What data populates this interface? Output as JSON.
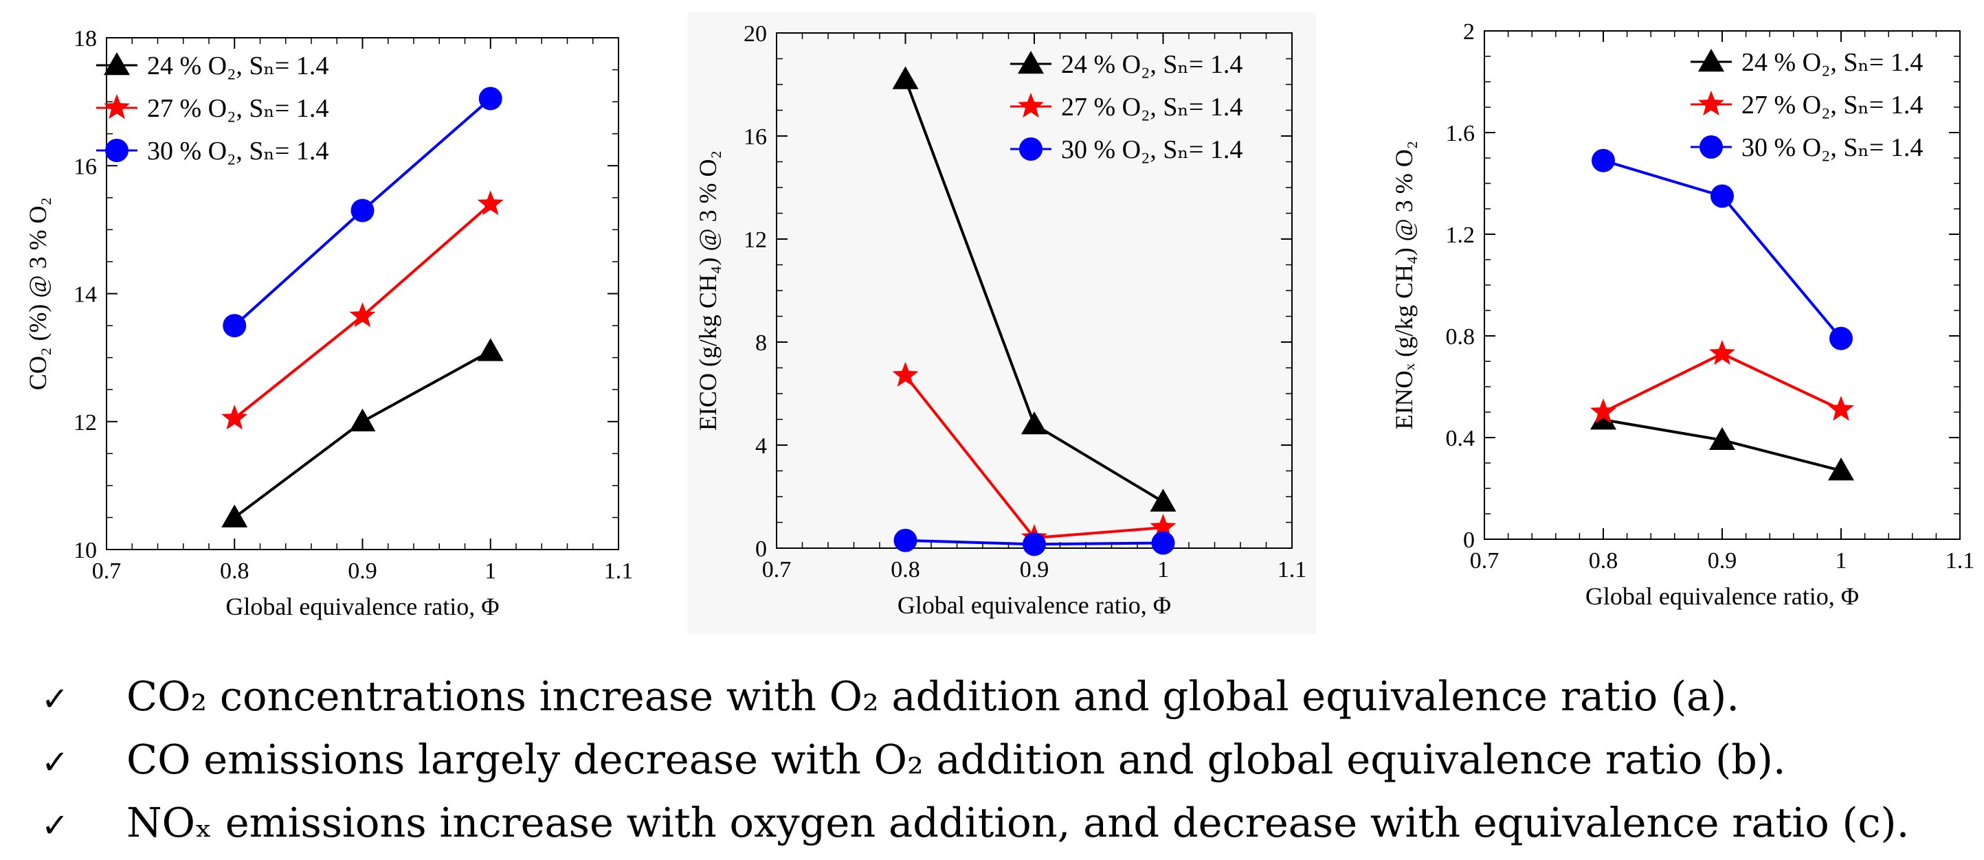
{
  "chart_data": [
    {
      "type": "line",
      "panel": "a",
      "xlabel": "Global equivalence ratio, Φ",
      "ylabel": "CO₂ (%) @ 3 % O₂",
      "xlim": [
        0.7,
        1.1
      ],
      "ylim": [
        10,
        18
      ],
      "xticks": [
        0.7,
        0.8,
        0.9,
        1.0,
        1.1
      ],
      "xtick_labels": [
        "0.7",
        "0.8",
        "0.9",
        "1",
        "1.1"
      ],
      "yticks": [
        10,
        12,
        14,
        16,
        18
      ],
      "ytick_labels": [
        "10",
        "12",
        "14",
        "16",
        "18"
      ],
      "x": [
        0.8,
        0.9,
        1.0
      ],
      "legend_position": "top-left",
      "grid": false,
      "background": "#ffffff",
      "series": [
        {
          "name": "24 % O₂, Sₙ= 1.4",
          "marker": "triangle",
          "color": "#000000",
          "values": [
            10.5,
            12.0,
            13.1
          ]
        },
        {
          "name": "27 % O₂, Sₙ= 1.4",
          "marker": "star",
          "color": "#ff0000",
          "values": [
            12.05,
            13.65,
            15.4
          ]
        },
        {
          "name": "30 % O₂, Sₙ= 1.4",
          "marker": "circle",
          "color": "#0000ff",
          "values": [
            13.5,
            15.3,
            17.05
          ]
        }
      ]
    },
    {
      "type": "line",
      "panel": "b",
      "xlabel": "Global equivalence ratio, Φ",
      "ylabel": "EICO (g/kg CH₄) @ 3 % O₂",
      "xlim": [
        0.7,
        1.1
      ],
      "ylim": [
        0,
        20
      ],
      "xticks": [
        0.7,
        0.8,
        0.9,
        1.0,
        1.1
      ],
      "xtick_labels": [
        "0.7",
        "0.8",
        "0.9",
        "1",
        "1.1"
      ],
      "yticks": [
        0,
        4,
        8,
        12,
        16,
        20
      ],
      "ytick_labels": [
        "0",
        "4",
        "8",
        "12",
        "16",
        "20"
      ],
      "x": [
        0.8,
        0.9,
        1.0
      ],
      "legend_position": "top-right",
      "grid": false,
      "background": "#f7f7f7",
      "series": [
        {
          "name": "24 % O₂, Sₙ= 1.4",
          "marker": "triangle",
          "color": "#000000",
          "values": [
            18.2,
            4.8,
            1.8
          ]
        },
        {
          "name": "27 % O₂, Sₙ= 1.4",
          "marker": "star",
          "color": "#ff0000",
          "values": [
            6.7,
            0.4,
            0.8
          ]
        },
        {
          "name": "30 % O₂, Sₙ= 1.4",
          "marker": "circle",
          "color": "#0000ff",
          "values": [
            0.3,
            0.15,
            0.2
          ]
        }
      ]
    },
    {
      "type": "line",
      "panel": "c",
      "xlabel": "Global equivalence ratio, Φ",
      "ylabel": "EINOₓ (g/kg CH₄) @ 3 % O₂",
      "xlim": [
        0.7,
        1.1
      ],
      "ylim": [
        0,
        2
      ],
      "xticks": [
        0.7,
        0.8,
        0.9,
        1.0,
        1.1
      ],
      "xtick_labels": [
        "0.7",
        "0.8",
        "0.9",
        "1",
        "1.1"
      ],
      "yticks": [
        0,
        0.4,
        0.8,
        1.2,
        1.6,
        2
      ],
      "ytick_labels": [
        "0",
        "0.4",
        "0.8",
        "1.2",
        "1.6",
        "2"
      ],
      "x": [
        0.8,
        0.9,
        1.0
      ],
      "legend_position": "top-right",
      "grid": false,
      "background": "#ffffff",
      "series": [
        {
          "name": "24 % O₂, Sₙ= 1.4",
          "marker": "triangle",
          "color": "#000000",
          "values": [
            0.47,
            0.39,
            0.27
          ]
        },
        {
          "name": "27 % O₂, Sₙ= 1.4",
          "marker": "star",
          "color": "#ff0000",
          "values": [
            0.5,
            0.73,
            0.51
          ]
        },
        {
          "name": "30 % O₂, Sₙ= 1.4",
          "marker": "circle",
          "color": "#0000ff",
          "values": [
            1.49,
            1.35,
            0.79
          ]
        }
      ]
    }
  ],
  "bullets": [
    {
      "check": "✓",
      "text": "CO₂ concentrations increase with O₂ addition and global equivalence ratio (a)."
    },
    {
      "check": "✓",
      "text": "CO emissions largely decrease with O₂ addition and global equivalence ratio (b)."
    },
    {
      "check": "✓",
      "text": "NOₓ emissions increase with oxygen addition, and decrease with equivalence ratio (c)."
    }
  ]
}
